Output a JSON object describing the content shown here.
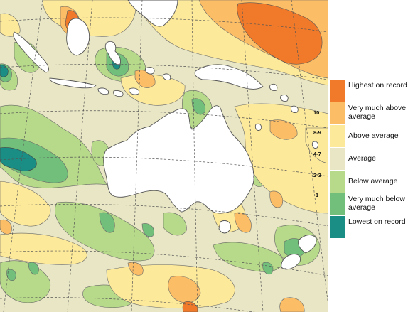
{
  "colors": {
    "ocean_average": "#e8e6c4",
    "land": "#ffffff",
    "coast": "#555555",
    "grid": "#555555"
  },
  "legend": [
    {
      "label": "Highest on record",
      "color": "#f07a2a",
      "decile": ""
    },
    {
      "label": "Very much above average",
      "color": "#fbbd66",
      "decile": "10"
    },
    {
      "label": "Above average",
      "color": "#fde99a",
      "decile": "8-9"
    },
    {
      "label": "Average",
      "color": "#e8e6c4",
      "decile": "4-7"
    },
    {
      "label": "Below average",
      "color": "#b7d98a",
      "decile": "2-3"
    },
    {
      "label": "Very much below average",
      "color": "#72bf7c",
      "decile": "1"
    },
    {
      "label": "Lowest on record",
      "color": "#1a8e85",
      "decile": ""
    }
  ]
}
